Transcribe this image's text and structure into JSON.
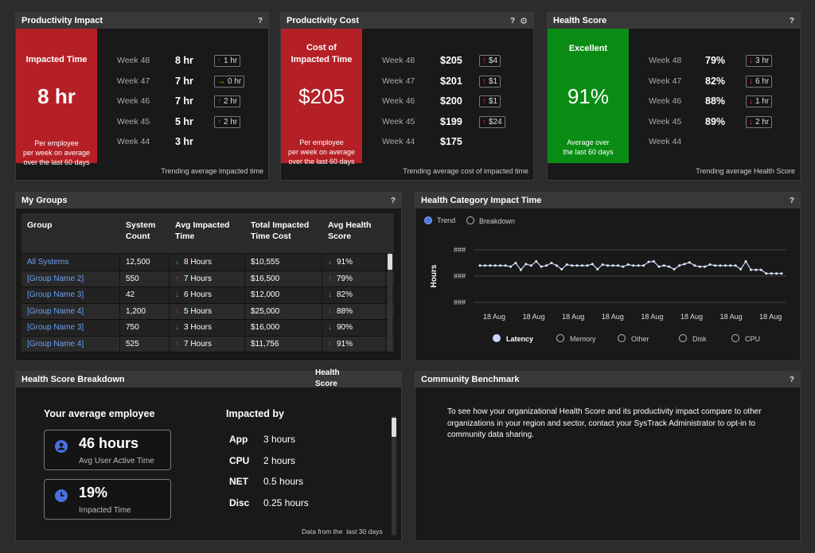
{
  "productivity_impact": {
    "title": "Productivity Impact",
    "help": "?",
    "kpi_title": "Impacted Time",
    "kpi_value": "8 hr",
    "kpi_sub": [
      "Per employee",
      "per week on average",
      "over the last 60 days"
    ],
    "weeks": [
      {
        "week": "Week 48",
        "value": "8 hr",
        "badge": "1 hr",
        "dir": "up"
      },
      {
        "week": "Week 47",
        "value": "7 hr",
        "badge": "0 hr",
        "dir": "flat"
      },
      {
        "week": "Week 46",
        "value": "7 hr",
        "badge": "2 hr",
        "dir": "up"
      },
      {
        "week": "Week 45",
        "value": "5 hr",
        "badge": "2 hr",
        "dir": "up"
      },
      {
        "week": "Week 44",
        "value": "3 hr",
        "badge": "",
        "dir": ""
      }
    ],
    "trend": "Trending average impacted time"
  },
  "productivity_cost": {
    "title": "Productivity Cost",
    "help": "?",
    "kpi_title": [
      "Cost of",
      "Impacted Time"
    ],
    "kpi_value": "$205",
    "kpi_sub": [
      "Per employee",
      "per week on average",
      "over the last 60 days"
    ],
    "weeks": [
      {
        "week": "Week 48",
        "value": "$205",
        "badge": "$4",
        "dir": "up"
      },
      {
        "week": "Week 47",
        "value": "$201",
        "badge": "$1",
        "dir": "up"
      },
      {
        "week": "Week 46",
        "value": "$200",
        "badge": "$1",
        "dir": "up"
      },
      {
        "week": "Week 45",
        "value": "$199",
        "badge": "$24",
        "dir": "up"
      },
      {
        "week": "Week 44",
        "value": "$175",
        "badge": "",
        "dir": ""
      }
    ],
    "trend": "Trending average cost of impacted time"
  },
  "health_score": {
    "title": "Health Score",
    "help": "?",
    "kpi_title": "Excellent",
    "kpi_value": "91%",
    "kpi_sub": [
      "Average over",
      "the last 60 days"
    ],
    "weeks": [
      {
        "week": "Week 48",
        "value": "79%",
        "badge": "3 hr",
        "dir": "down"
      },
      {
        "week": "Week 47",
        "value": "82%",
        "badge": "6 hr",
        "dir": "down"
      },
      {
        "week": "Week 46",
        "value": "88%",
        "badge": "1 hr",
        "dir": "down"
      },
      {
        "week": "Week 45",
        "value": "89%",
        "badge": "2 hr",
        "dir": "down"
      },
      {
        "week": "Week 44",
        "value": "",
        "badge": "",
        "dir": ""
      }
    ],
    "trend": "Trending average Health Score"
  },
  "my_groups": {
    "title": "My Groups",
    "help": "?",
    "headers": [
      "Group",
      "System Count",
      "Avg Impacted Time",
      "Total Impacted Time Cost",
      "Avg Health Score"
    ],
    "rows": [
      {
        "group": "All Systems",
        "count": "12,500",
        "time": "8 Hours",
        "time_dir": "down",
        "cost": "$10,555",
        "score": "91%",
        "score_dir": "down"
      },
      {
        "group": "[Group Name 2]",
        "count": "550",
        "time": "7 Hours",
        "time_dir": "up",
        "cost": "$16,500",
        "score": "79%",
        "score_dir": "up"
      },
      {
        "group": "[Group Name 3]",
        "count": "42",
        "time": "6 Hours",
        "time_dir": "down",
        "cost": "$12,000",
        "score": "82%",
        "score_dir": "down"
      },
      {
        "group": "[Group Name 4]",
        "count": "1,200",
        "time": "5 Hours",
        "time_dir": "up",
        "cost": "$25,000",
        "score": "88%",
        "score_dir": "up"
      },
      {
        "group": "[Group Name 3]",
        "count": "750",
        "time": "3 Hours",
        "time_dir": "down",
        "cost": "$16,000",
        "score": "90%",
        "score_dir": "down"
      },
      {
        "group": "[Group Name 4]",
        "count": "525",
        "time": "7 Hours",
        "time_dir": "up",
        "cost": "$11,756",
        "score": "91%",
        "score_dir": "up"
      }
    ]
  },
  "health_category": {
    "title": "Health Category Impact Time",
    "help": "?",
    "radio_trend": "Trend",
    "radio_breakdown": "Breakdown",
    "legend": [
      "Latency",
      "Memory",
      "Other",
      "Disk",
      "CPU"
    ]
  },
  "chart_data": {
    "type": "line",
    "ylabel": "Hours",
    "ytick_labels": [
      "###",
      "###",
      "###"
    ],
    "x_labels": [
      "18 Aug",
      "18 Aug",
      "18 Aug",
      "18 Aug",
      "18 Aug",
      "18 Aug",
      "18 Aug",
      "18 Aug"
    ],
    "series": [
      {
        "name": "Latency",
        "values": [
          0.7,
          0.7,
          0.7,
          0.7,
          0.7,
          0.7,
          0.68,
          0.75,
          0.62,
          0.73,
          0.7,
          0.78,
          0.68,
          0.7,
          0.75,
          0.7,
          0.63,
          0.72,
          0.7,
          0.7,
          0.7,
          0.7,
          0.73,
          0.63,
          0.72,
          0.7,
          0.7,
          0.7,
          0.68,
          0.72,
          0.7,
          0.7,
          0.7,
          0.77,
          0.78,
          0.68,
          0.7,
          0.68,
          0.63,
          0.7,
          0.73,
          0.76,
          0.7,
          0.68,
          0.68,
          0.72,
          0.7,
          0.7,
          0.7,
          0.7,
          0.7,
          0.63,
          0.78,
          0.62,
          0.62,
          0.62,
          0.55,
          0.55,
          0.55,
          0.55
        ]
      }
    ],
    "ylim": [
      0,
      1
    ],
    "grid": true,
    "legend_position": "bottom"
  },
  "breakdown": {
    "title": "Health Score Breakdown",
    "overlay_label": [
      "Health",
      "Score"
    ],
    "avg_heading": "Your average employee",
    "card1_value": "46 hours",
    "card1_label": "Avg User Active Time",
    "card2_value": "19%",
    "card2_label": "Impacted Time",
    "impacted_heading": "Impacted by",
    "impacted": [
      {
        "k": "App",
        "v": "3 hours"
      },
      {
        "k": "CPU",
        "v": "2 hours"
      },
      {
        "k": "NET",
        "v": "0.5 hours"
      },
      {
        "k": "Disc",
        "v": "0.25 hours"
      }
    ],
    "footnote": "Data from the  last 30 days"
  },
  "community": {
    "title": "Community Benchmark",
    "help": "?",
    "text": "To see how your organizational Health Score and its productivity impact compare to other organizations in your region and sector, contact your SysTrack Administrator to opt-in to community data sharing."
  },
  "colors": {
    "red": "#b52026",
    "green": "#0a8c14",
    "link": "#6da0f4",
    "line": "#c8d6ff"
  }
}
